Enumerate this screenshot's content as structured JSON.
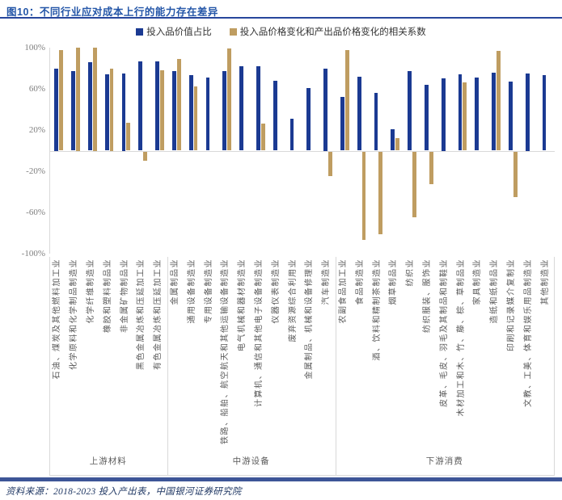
{
  "title": "图10：不同行业应对成本上行的能力存在差异",
  "source": "资料来源：2018-2023 投入产出表，中国银河证券研究院",
  "colors": {
    "series_blue": "#1b3a92",
    "series_gold": "#bf9d61",
    "title_blue": "#2456a8",
    "rule_navy": "#27479c",
    "bottom_bar": "#3d5597",
    "gridline": "#d9d9d9",
    "axis_text": "#7f7f7f",
    "label_text": "#595959"
  },
  "chart_data": {
    "type": "bar",
    "title": "图10：不同行业应对成本上行的能力存在差异",
    "xlabel": "",
    "ylabel": "",
    "ylim": [
      -100,
      100
    ],
    "grid": false,
    "legend_position": "top-center",
    "yticks": {
      "labels": [
        "100%",
        "60%",
        "20%",
        "-20%",
        "-60%",
        "-100%"
      ],
      "values": [
        100,
        60,
        20,
        -20,
        -60,
        -100
      ]
    },
    "categories": [
      "石油、煤炭及其他燃料加工业",
      "化学原料和化学制品制造业",
      "化学纤维制造业",
      "橡胶和塑料制品业",
      "非金属矿物制品业",
      "黑色金属冶炼和压延加工业",
      "有色金属冶炼和压延加工业",
      "金属制品业",
      "通用设备制造业",
      "专用设备制造业",
      "铁路、船舶、航空航天和其他运输设备制造业",
      "电气机械和器材制造业",
      "计算机、通信和其他电子设备制造业",
      "仪器仪表制造业",
      "废弃资源综合利用业",
      "金属制品、机械和设备修理业",
      "汽车制造业",
      "农副食品加工业",
      "食品制造业",
      "酒、饮料和精制茶制造业",
      "烟草制品业",
      "纺织业",
      "纺织服装、服饰业",
      "皮革、毛皮、羽毛及其制品和制鞋业",
      "木材加工和木、竹、藤、棕、草制品业",
      "家具制造业",
      "造纸和纸制品业",
      "印刷和记录媒介复制业",
      "文教、工美、体育和娱乐用品制造业",
      "其他制造业"
    ],
    "groups": [
      {
        "label": "上游材料",
        "count": 7
      },
      {
        "label": "中游设备",
        "count": 10
      },
      {
        "label": "下游消费",
        "count": 13
      }
    ],
    "series": [
      {
        "name": "投入品价值占比",
        "color": "#1b3a92",
        "values": [
          80,
          77,
          86,
          74,
          75,
          87,
          87,
          77,
          73,
          71,
          77,
          82,
          82,
          68,
          31,
          61,
          80,
          52,
          72,
          56,
          21,
          77,
          64,
          70,
          74,
          71,
          76,
          67,
          75,
          73
        ]
      },
      {
        "name": "投入品价格变化和产出品价格变化的相关系数",
        "color": "#bf9d61",
        "values": [
          98,
          100,
          100,
          80,
          27,
          -9,
          78,
          89,
          62,
          null,
          99,
          null,
          26,
          null,
          null,
          null,
          -24,
          98,
          -86,
          -80,
          12,
          -64,
          -32,
          null,
          66,
          null,
          97,
          -44,
          null,
          null
        ]
      }
    ]
  }
}
